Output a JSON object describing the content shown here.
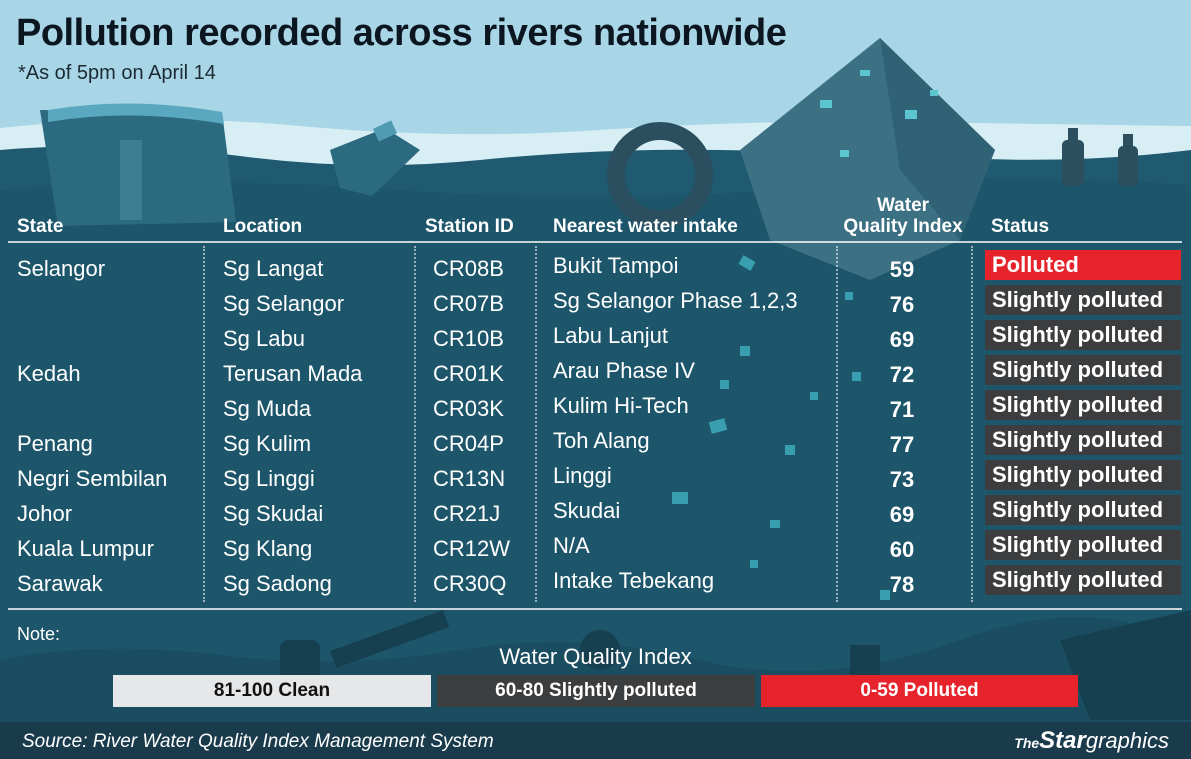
{
  "title": "Pollution recorded across rivers nationwide",
  "subtitle": "*As of 5pm on April 14",
  "headers": {
    "state": "State",
    "location": "Location",
    "station": "Station ID",
    "intake": "Nearest water intake",
    "wqi_line1": "Water",
    "wqi_line2": "Quality Index",
    "status": "Status"
  },
  "rows": [
    {
      "state": "Selangor",
      "location": "Sg Langat",
      "station": "CR08B",
      "intake": "Bukit Tampoi",
      "wqi": "59",
      "status": "Polluted"
    },
    {
      "state": "",
      "location": "Sg Selangor",
      "station": "CR07B",
      "intake": "Sg Selangor Phase 1,2,3",
      "wqi": "76",
      "status": "Slightly polluted"
    },
    {
      "state": "",
      "location": "Sg Labu",
      "station": "CR10B",
      "intake": "Labu Lanjut",
      "wqi": "69",
      "status": "Slightly polluted"
    },
    {
      "state": "Kedah",
      "location": "Terusan Mada",
      "station": "CR01K",
      "intake": "Arau Phase IV",
      "wqi": "72",
      "status": "Slightly polluted"
    },
    {
      "state": "",
      "location": "Sg Muda",
      "station": "CR03K",
      "intake": "Kulim Hi-Tech",
      "wqi": "71",
      "status": "Slightly polluted"
    },
    {
      "state": "Penang",
      "location": "Sg Kulim",
      "station": "CR04P",
      "intake": "Toh Alang",
      "wqi": "77",
      "status": "Slightly polluted"
    },
    {
      "state": "Negri Sembilan",
      "location": "Sg Linggi",
      "station": "CR13N",
      "intake": "Linggi",
      "wqi": "73",
      "status": "Slightly polluted"
    },
    {
      "state": "Johor",
      "location": "Sg Skudai",
      "station": "CR21J",
      "intake": "Skudai",
      "wqi": "69",
      "status": "Slightly polluted"
    },
    {
      "state": "Kuala Lumpur",
      "location": "Sg Klang",
      "station": "CR12W",
      "intake": "N/A",
      "wqi": "60",
      "status": "Slightly polluted"
    },
    {
      "state": "Sarawak",
      "location": "Sg Sadong",
      "station": "CR30Q",
      "intake": "Intake Tebekang",
      "wqi": "78",
      "status": "Slightly polluted"
    }
  ],
  "note_label": "Note:",
  "legend": {
    "title": "Water Quality Index",
    "items": [
      {
        "label": "81-100 Clean",
        "color": "#e6e7e8",
        "text_color": "#111111"
      },
      {
        "label": "60-80 Slightly polluted",
        "color": "#3c3d3f",
        "text_color": "#ffffff"
      },
      {
        "label": "0-59 Polluted",
        "color": "#e6232b",
        "text_color": "#ffffff"
      }
    ]
  },
  "colors": {
    "polluted": "#e6232b",
    "slightly_polluted": "#3c3d3f",
    "clean": "#e6e7e8",
    "water": "#1f5a70",
    "sky": "#a9d6e6"
  },
  "source": "Source: River Water Quality Index Management System",
  "brand": {
    "the": "The",
    "star": "Star",
    "graphics": "graphics"
  }
}
